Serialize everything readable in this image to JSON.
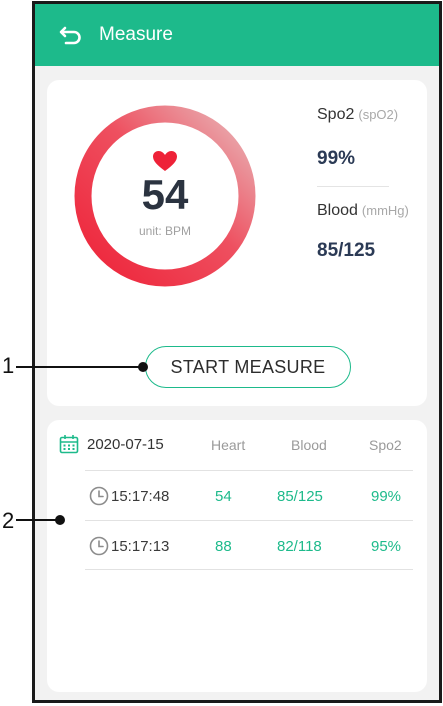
{
  "header": {
    "title": "Measure"
  },
  "gauge": {
    "value": "54",
    "unit": "unit: BPM",
    "fill_fraction": 0.8
  },
  "metrics": {
    "spo2": {
      "label": "Spo2",
      "unit": "(spO2)",
      "value": "99%"
    },
    "blood": {
      "label": "Blood",
      "unit": "(mmHg)",
      "value": "85/125"
    }
  },
  "start_button": {
    "label": "START MEASURE"
  },
  "history": {
    "date": "2020-07-15",
    "columns": [
      "Heart",
      "Blood",
      "Spo2"
    ],
    "rows": [
      {
        "time": "15:17:48",
        "heart": "54",
        "blood": "85/125",
        "spo2": "99%"
      },
      {
        "time": "15:17:13",
        "heart": "88",
        "blood": "82/118",
        "spo2": "95%"
      }
    ]
  },
  "callouts": [
    "1",
    "2"
  ],
  "colors": {
    "accent": "#1dba8b",
    "gauge_start": "#ee2238",
    "gauge_end": "#e8b8ba",
    "text_dark": "#2b3340"
  },
  "icons": [
    "back-arrow-icon",
    "heart-icon",
    "calendar-icon",
    "clock-icon"
  ]
}
